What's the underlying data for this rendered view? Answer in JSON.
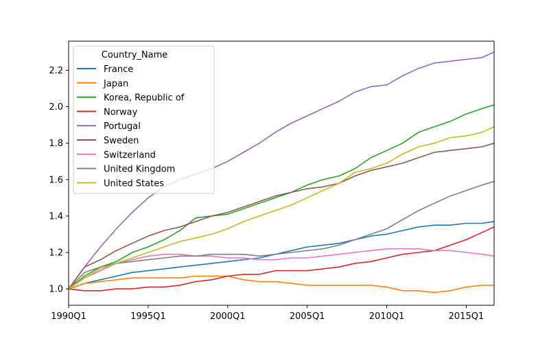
{
  "chart_data": {
    "type": "line",
    "title": "",
    "xlabel": "",
    "ylabel": "",
    "x_ticks": [
      "1990Q1",
      "1995Q1",
      "2000Q1",
      "2005Q1",
      "2010Q1",
      "2015Q1"
    ],
    "y_ticks": [
      "1.0",
      "1.2",
      "1.4",
      "1.6",
      "1.8",
      "2.0",
      "2.2"
    ],
    "xlim": [
      "1990Q1",
      "2016Q4"
    ],
    "ylim": [
      0.91,
      2.36
    ],
    "grid": false,
    "legend": {
      "title": "Country_Name",
      "placement": "top-left"
    },
    "x": [
      "1990Q1",
      "1991Q1",
      "1992Q1",
      "1993Q1",
      "1994Q1",
      "1995Q1",
      "1996Q1",
      "1997Q1",
      "1998Q1",
      "1999Q1",
      "2000Q1",
      "2001Q1",
      "2002Q1",
      "2003Q1",
      "2004Q1",
      "2005Q1",
      "2006Q1",
      "2007Q1",
      "2008Q1",
      "2009Q1",
      "2010Q1",
      "2011Q1",
      "2012Q1",
      "2013Q1",
      "2014Q1",
      "2015Q1",
      "2016Q1",
      "2016Q4"
    ],
    "series": [
      {
        "name": "France",
        "color": "#1f77b4",
        "values": [
          1.0,
          1.03,
          1.05,
          1.07,
          1.09,
          1.1,
          1.11,
          1.12,
          1.13,
          1.14,
          1.15,
          1.16,
          1.17,
          1.19,
          1.21,
          1.23,
          1.24,
          1.25,
          1.27,
          1.29,
          1.3,
          1.32,
          1.34,
          1.35,
          1.35,
          1.36,
          1.36,
          1.37
        ]
      },
      {
        "name": "Japan",
        "color": "#ff7f0e",
        "values": [
          1.0,
          1.03,
          1.04,
          1.05,
          1.06,
          1.06,
          1.06,
          1.06,
          1.07,
          1.07,
          1.07,
          1.05,
          1.04,
          1.04,
          1.03,
          1.02,
          1.02,
          1.02,
          1.02,
          1.02,
          1.01,
          0.99,
          0.99,
          0.98,
          0.99,
          1.01,
          1.02,
          1.02
        ]
      },
      {
        "name": "Korea, Republic of",
        "color": "#2ca02c",
        "values": [
          1.0,
          1.07,
          1.12,
          1.15,
          1.2,
          1.23,
          1.27,
          1.32,
          1.39,
          1.4,
          1.41,
          1.44,
          1.47,
          1.5,
          1.53,
          1.57,
          1.6,
          1.62,
          1.66,
          1.72,
          1.76,
          1.8,
          1.86,
          1.89,
          1.92,
          1.96,
          1.99,
          2.01
        ]
      },
      {
        "name": "Norway",
        "color": "#d62728",
        "values": [
          1.0,
          0.99,
          0.99,
          1.0,
          1.0,
          1.01,
          1.01,
          1.02,
          1.04,
          1.05,
          1.07,
          1.08,
          1.08,
          1.1,
          1.1,
          1.1,
          1.11,
          1.12,
          1.14,
          1.15,
          1.17,
          1.19,
          1.2,
          1.21,
          1.24,
          1.27,
          1.31,
          1.34
        ]
      },
      {
        "name": "Portugal",
        "color": "#9467bd",
        "values": [
          1.0,
          1.12,
          1.23,
          1.33,
          1.42,
          1.5,
          1.56,
          1.6,
          1.63,
          1.66,
          1.7,
          1.75,
          1.8,
          1.86,
          1.91,
          1.95,
          1.99,
          2.03,
          2.08,
          2.11,
          2.12,
          2.17,
          2.21,
          2.24,
          2.25,
          2.26,
          2.27,
          2.3
        ]
      },
      {
        "name": "Sweden",
        "color": "#8c564b",
        "values": [
          1.0,
          1.12,
          1.16,
          1.21,
          1.25,
          1.29,
          1.32,
          1.34,
          1.37,
          1.4,
          1.42,
          1.45,
          1.48,
          1.51,
          1.53,
          1.55,
          1.56,
          1.58,
          1.62,
          1.65,
          1.67,
          1.69,
          1.72,
          1.75,
          1.76,
          1.77,
          1.78,
          1.8
        ]
      },
      {
        "name": "Switzerland",
        "color": "#e377c2",
        "values": [
          1.0,
          1.06,
          1.1,
          1.14,
          1.16,
          1.18,
          1.19,
          1.19,
          1.18,
          1.18,
          1.17,
          1.17,
          1.16,
          1.16,
          1.17,
          1.17,
          1.18,
          1.19,
          1.2,
          1.21,
          1.22,
          1.22,
          1.22,
          1.21,
          1.21,
          1.2,
          1.19,
          1.18
        ]
      },
      {
        "name": "United Kingdom",
        "color": "#7f7f7f",
        "values": [
          1.0,
          1.09,
          1.12,
          1.14,
          1.15,
          1.16,
          1.17,
          1.18,
          1.18,
          1.19,
          1.19,
          1.19,
          1.18,
          1.19,
          1.2,
          1.21,
          1.22,
          1.24,
          1.27,
          1.3,
          1.33,
          1.38,
          1.43,
          1.47,
          1.51,
          1.54,
          1.57,
          1.59
        ]
      },
      {
        "name": "United States",
        "color": "#bcbd22",
        "values": [
          1.0,
          1.06,
          1.11,
          1.14,
          1.17,
          1.2,
          1.23,
          1.26,
          1.28,
          1.3,
          1.33,
          1.37,
          1.4,
          1.43,
          1.46,
          1.5,
          1.54,
          1.58,
          1.64,
          1.66,
          1.69,
          1.74,
          1.78,
          1.8,
          1.83,
          1.84,
          1.86,
          1.89
        ]
      }
    ]
  }
}
